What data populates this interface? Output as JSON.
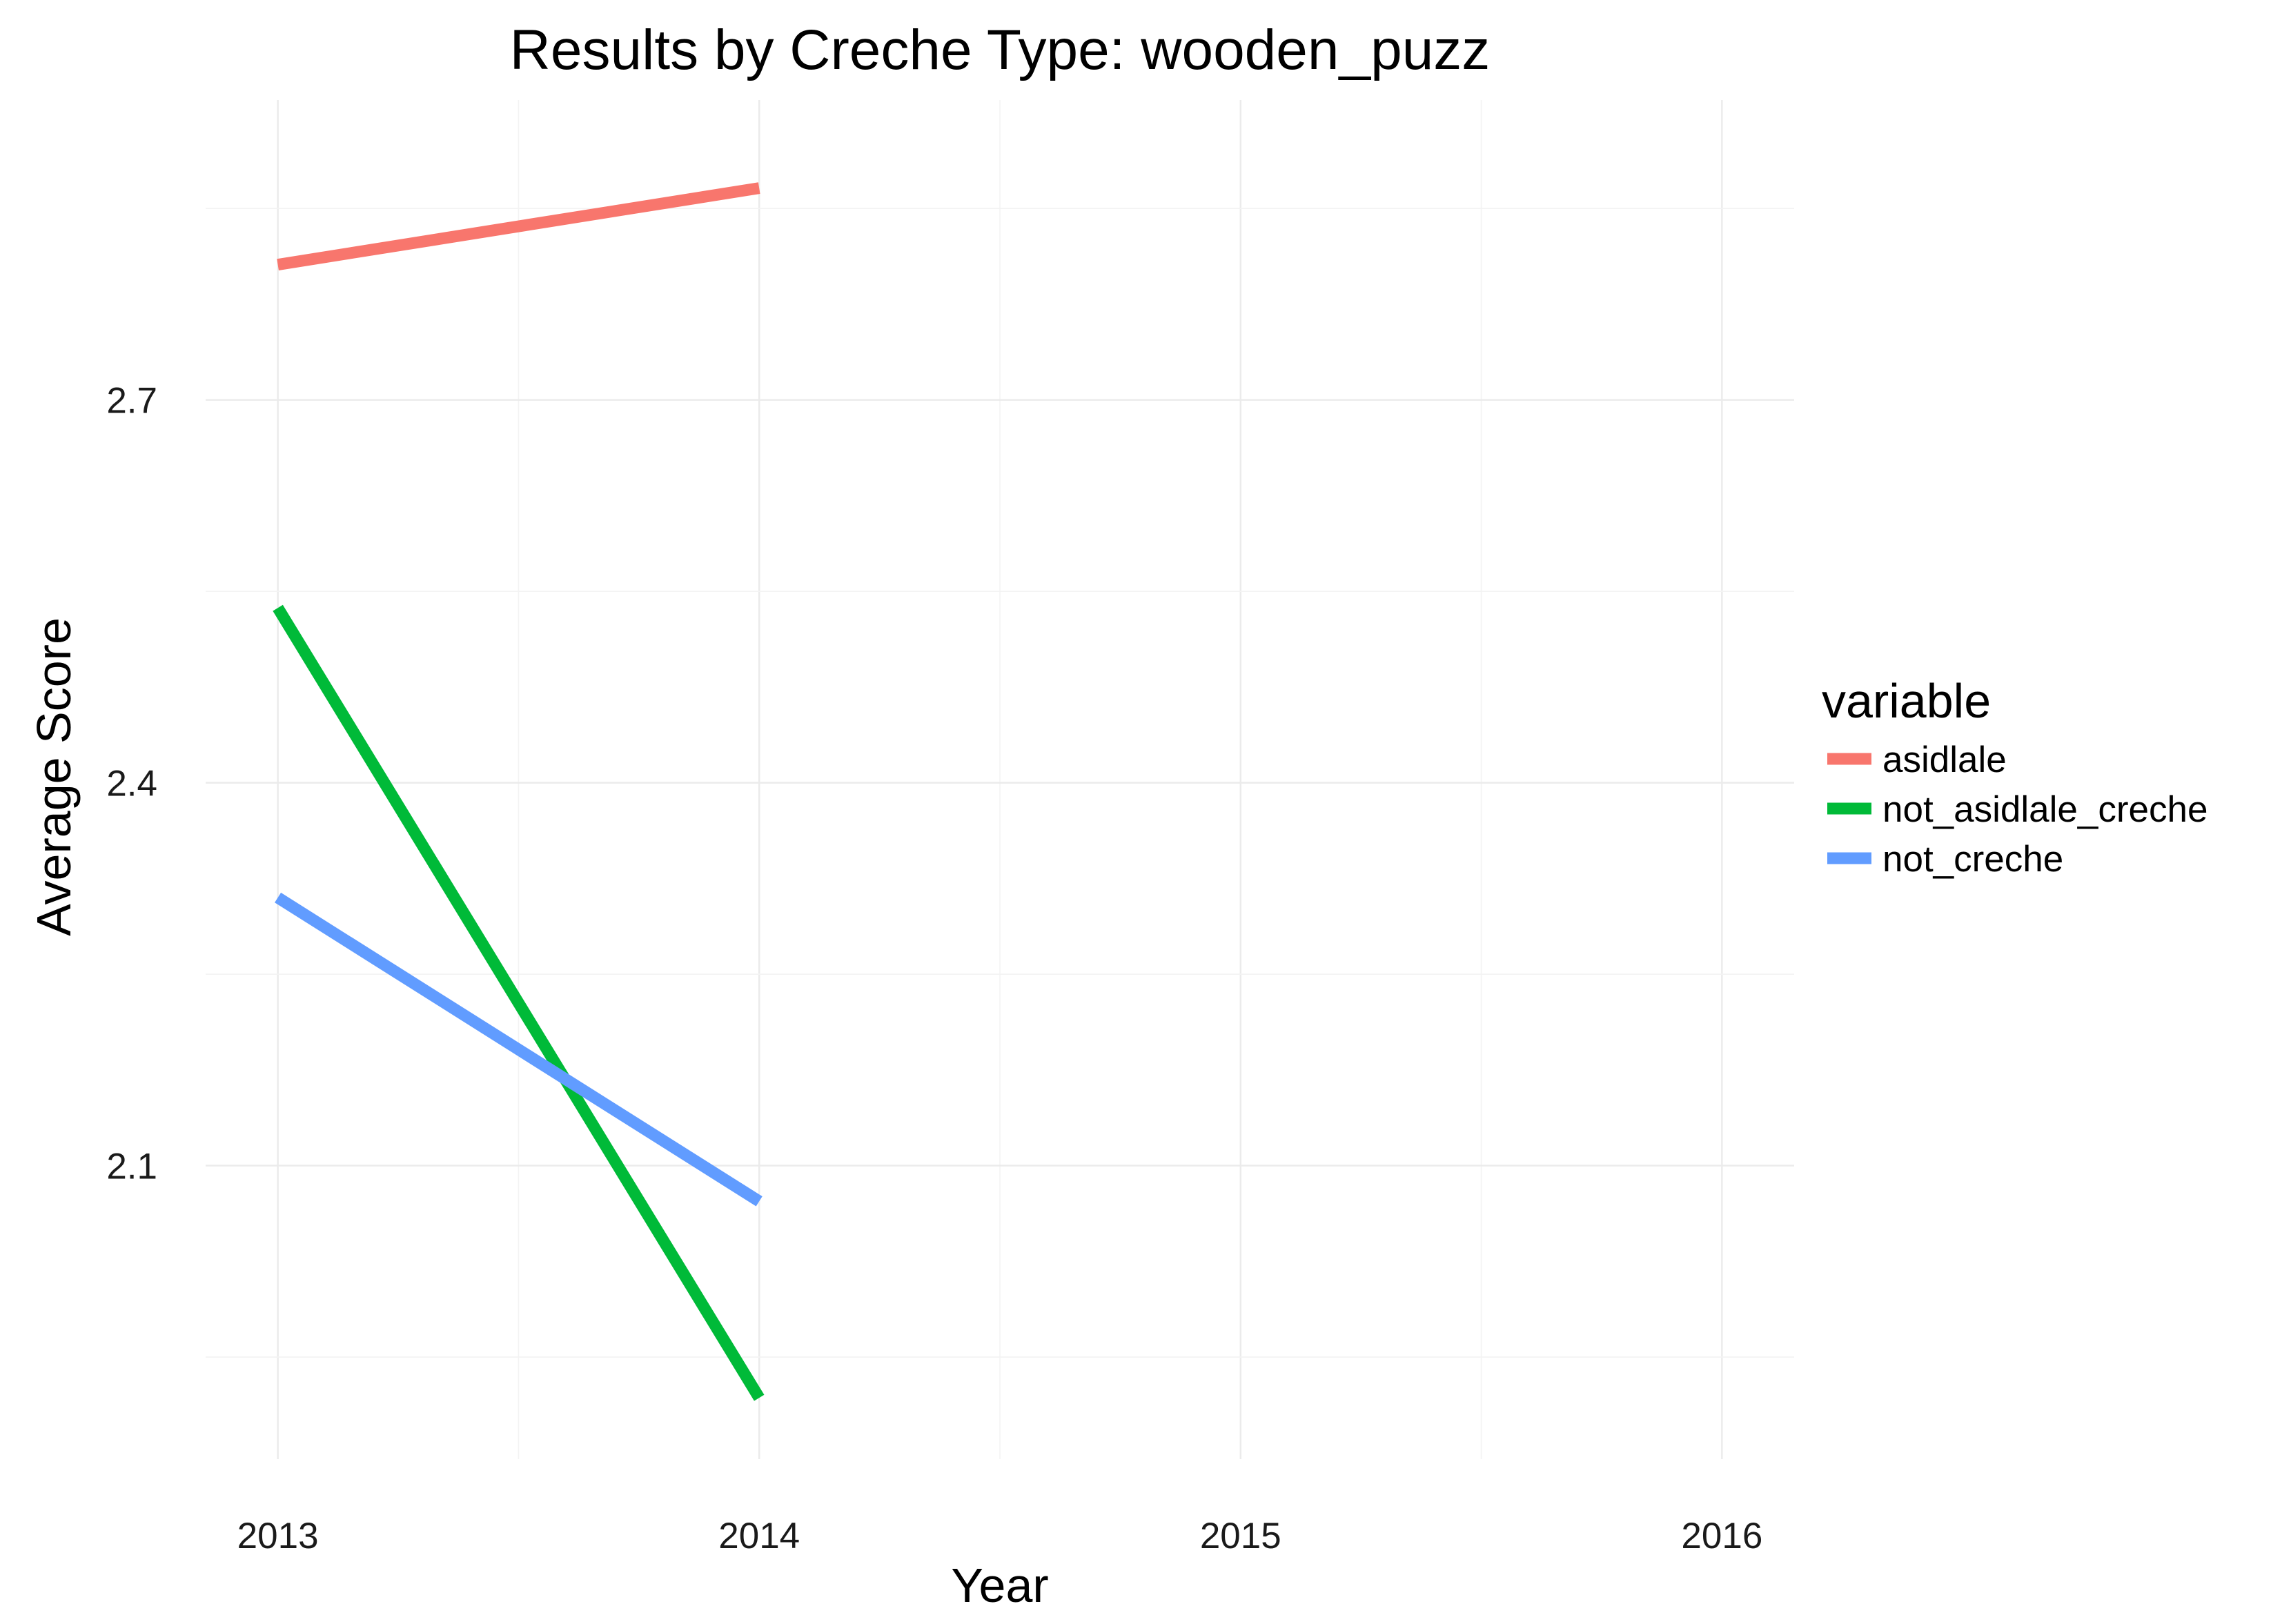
{
  "chart_data": {
    "type": "line",
    "title": "Results by Creche Type: wooden_puzz",
    "xlabel": "Year",
    "ylabel": "Average Score",
    "x_ticks": [
      2013,
      2014,
      2015,
      2016
    ],
    "x_tick_labels": [
      "2013",
      "2014",
      "2015",
      "2016"
    ],
    "y_ticks": [
      2.1,
      2.4,
      2.7
    ],
    "y_tick_labels": [
      "2.1",
      "2.4",
      "2.7"
    ],
    "xlim": [
      2012.85,
      2016.15
    ],
    "ylim": [
      1.87,
      2.935
    ],
    "grid": true,
    "legend": {
      "title": "variable",
      "position": "right"
    },
    "series": [
      {
        "name": "asidlale",
        "color": "#F8766D",
        "x": [
          2013,
          2014
        ],
        "y": [
          2.806,
          2.866
        ]
      },
      {
        "name": "not_asidlale_creche",
        "color": "#00BA38",
        "x": [
          2013,
          2014
        ],
        "y": [
          2.537,
          1.918
        ]
      },
      {
        "name": "not_creche",
        "color": "#619CFF",
        "x": [
          2013,
          2014
        ],
        "y": [
          2.31,
          2.072
        ]
      }
    ]
  }
}
